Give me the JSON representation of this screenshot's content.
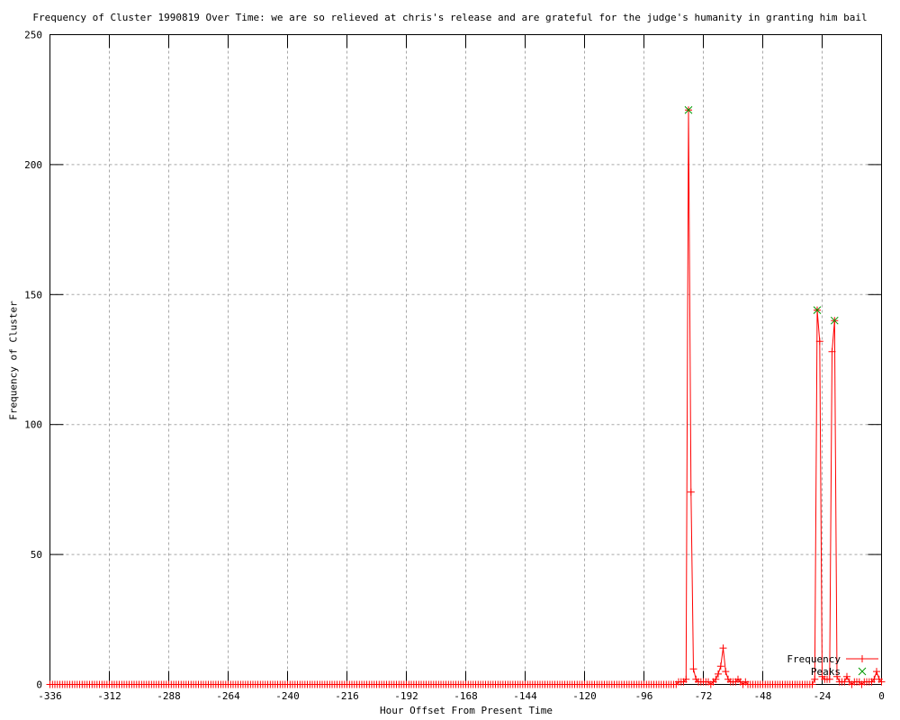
{
  "chart_data": {
    "type": "line",
    "title": "Frequency of Cluster 1990819 Over Time: we are so relieved at chris's release and are grateful for the judge's humanity in granting him bail",
    "xlabel": "Hour Offset From Present Time",
    "ylabel": "Frequency of Cluster",
    "xlim": [
      -336,
      0
    ],
    "ylim": [
      0,
      250
    ],
    "x_ticks": [
      -336,
      -312,
      -288,
      -264,
      -240,
      -216,
      -192,
      -168,
      -144,
      -120,
      -96,
      -72,
      -48,
      -24,
      0
    ],
    "y_ticks": [
      0,
      50,
      100,
      150,
      200,
      250
    ],
    "grid": true,
    "legend_position": "inside-bottom-right",
    "series": [
      {
        "name": "Frequency",
        "color": "#ff0000",
        "marker": "plus",
        "style": "linespoints",
        "x_range": [
          -336,
          0,
          1
        ],
        "baseline_value": 0,
        "nonzero": [
          [
            -82,
            1
          ],
          [
            -81,
            1
          ],
          [
            -80,
            1
          ],
          [
            -79,
            2
          ],
          [
            -78,
            221
          ],
          [
            -77,
            74
          ],
          [
            -76,
            6
          ],
          [
            -75,
            2
          ],
          [
            -74,
            1
          ],
          [
            -73,
            1
          ],
          [
            -72,
            1
          ],
          [
            -71,
            1
          ],
          [
            -70,
            1
          ],
          [
            -68,
            1
          ],
          [
            -67,
            2
          ],
          [
            -66,
            4
          ],
          [
            -65,
            7
          ],
          [
            -64,
            14
          ],
          [
            -63,
            5
          ],
          [
            -62,
            2
          ],
          [
            -61,
            1
          ],
          [
            -60,
            1
          ],
          [
            -59,
            1
          ],
          [
            -58,
            2
          ],
          [
            -57,
            1
          ],
          [
            -55,
            1
          ],
          [
            -27,
            2
          ],
          [
            -26,
            144
          ],
          [
            -25,
            132
          ],
          [
            -24,
            3
          ],
          [
            -23,
            2
          ],
          [
            -22,
            2
          ],
          [
            -21,
            2
          ],
          [
            -20,
            128
          ],
          [
            -19,
            140
          ],
          [
            -18,
            3
          ],
          [
            -17,
            1
          ],
          [
            -16,
            1
          ],
          [
            -15,
            1
          ],
          [
            -14,
            3
          ],
          [
            -13,
            1
          ],
          [
            -11,
            1
          ],
          [
            -10,
            1
          ],
          [
            -9,
            1
          ],
          [
            -7,
            1
          ],
          [
            -6,
            1
          ],
          [
            -5,
            1
          ],
          [
            -4,
            1
          ],
          [
            -3,
            2
          ],
          [
            -2,
            5
          ],
          [
            -1,
            2
          ],
          [
            0,
            1
          ]
        ]
      },
      {
        "name": "Peaks",
        "color": "#009900",
        "marker": "cross",
        "style": "points",
        "points": [
          [
            -78,
            221
          ],
          [
            -26,
            144
          ],
          [
            -19,
            140
          ]
        ]
      }
    ]
  },
  "colors": {
    "frequency_line": "#ff0000",
    "peaks_marker": "#009900",
    "grid": "#a8a8a8",
    "axis": "#000000",
    "text": "#000000",
    "background": "#ffffff"
  }
}
